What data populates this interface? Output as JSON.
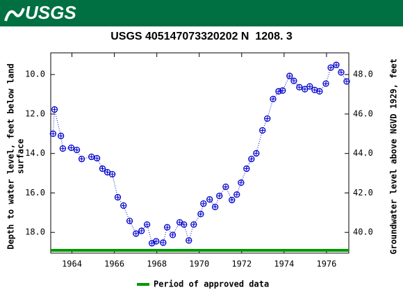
{
  "header": {
    "logo": "USGS"
  },
  "chart_data": {
    "type": "scatter",
    "title": "USGS 405147073320202 N  1208. 3",
    "ylabel": [
      "Depth to water level, feet below land",
      "surface"
    ],
    "y2label": "Groundwater level above NGVD 1929, feet",
    "xlim": [
      1963.0,
      1977.05
    ],
    "xticks": [
      1964,
      1966,
      1968,
      1970,
      1972,
      1974,
      1976
    ],
    "ylim": [
      8.9,
      19.05
    ],
    "y_inverted": true,
    "yticks": [
      {
        "value": 10,
        "label": "10.0"
      },
      {
        "value": 12,
        "label": "12.0"
      },
      {
        "value": 14,
        "label": "14.0"
      },
      {
        "value": 16,
        "label": "16.0"
      },
      {
        "value": 18,
        "label": "18.0"
      }
    ],
    "y2lim": [
      38.95,
      49.1
    ],
    "y2ticks": [
      {
        "value": 40,
        "label": "40.0"
      },
      {
        "value": 42,
        "label": "42.0"
      },
      {
        "value": 44,
        "label": "44.0"
      },
      {
        "value": 46,
        "label": "46.0"
      },
      {
        "value": 48,
        "label": "48.0"
      }
    ],
    "series": [
      {
        "color": "#0000cc",
        "x": [
          1963.11,
          1963.18,
          1963.48,
          1963.57,
          1963.97,
          1964.23,
          1964.46,
          1964.92,
          1965.18,
          1965.44,
          1965.67,
          1965.9,
          1966.16,
          1966.43,
          1966.72,
          1967.02,
          1967.28,
          1967.54,
          1967.77,
          1967.97,
          1968.3,
          1968.49,
          1968.75,
          1969.08,
          1969.28,
          1969.51,
          1969.74,
          1970.07,
          1970.2,
          1970.49,
          1970.75,
          1970.95,
          1971.25,
          1971.54,
          1971.77,
          1971.97,
          1972.23,
          1972.46,
          1972.69,
          1972.98,
          1973.21,
          1973.48,
          1973.74,
          1973.93,
          1974.26,
          1974.46,
          1974.72,
          1974.98,
          1975.21,
          1975.44,
          1975.67,
          1975.97,
          1976.2,
          1976.46,
          1976.69,
          1976.95
        ],
        "values": [
          13.0,
          11.77,
          13.11,
          13.75,
          13.71,
          13.82,
          14.28,
          14.17,
          14.24,
          14.77,
          14.95,
          15.05,
          16.22,
          16.64,
          17.42,
          18.06,
          17.92,
          17.6,
          18.55,
          18.45,
          18.52,
          17.74,
          18.13,
          17.49,
          17.6,
          18.41,
          17.6,
          17.07,
          16.54,
          16.33,
          16.71,
          16.15,
          15.69,
          16.36,
          16.08,
          15.48,
          14.77,
          14.28,
          13.99,
          12.83,
          12.23,
          11.24,
          10.85,
          10.81,
          10.07,
          10.32,
          10.64,
          10.74,
          10.6,
          10.78,
          10.85,
          10.46,
          9.65,
          9.51,
          9.89,
          10.35
        ]
      }
    ],
    "approved_period": {
      "name": "Period of approved data",
      "color": "#009900",
      "x": [
        1963.0,
        1977.05
      ]
    }
  }
}
